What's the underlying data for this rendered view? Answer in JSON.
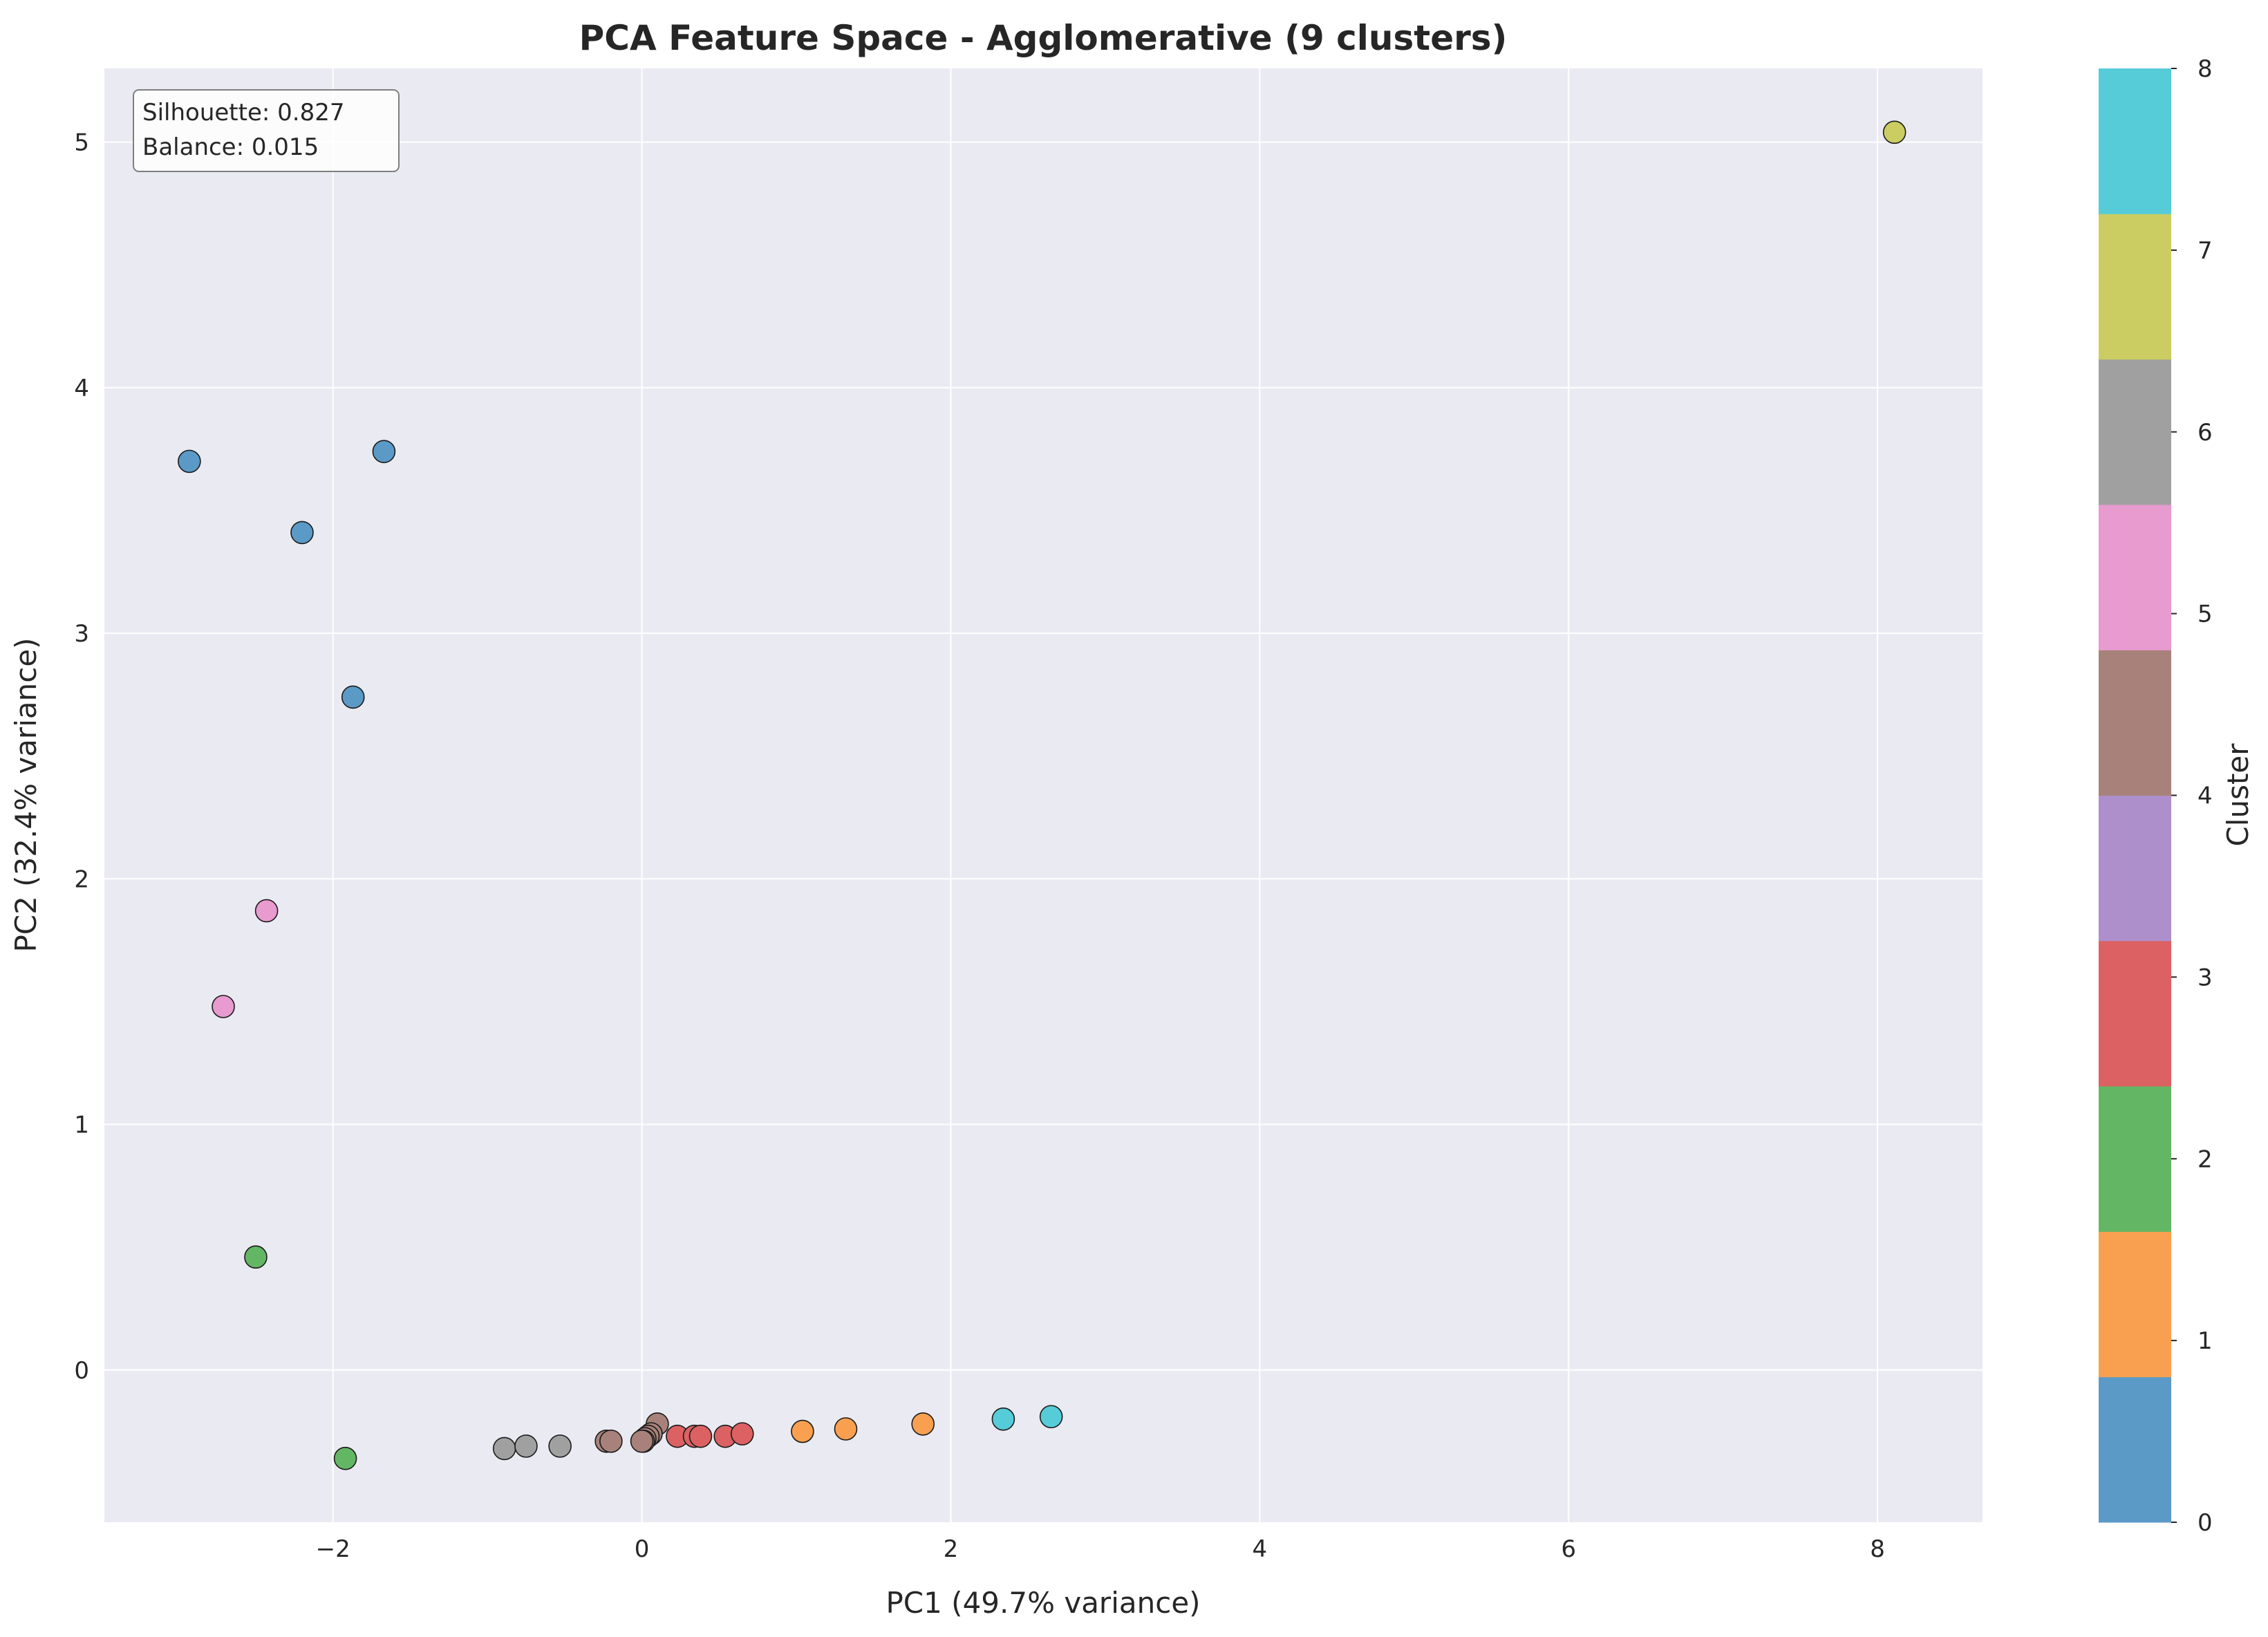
{
  "chart_data": {
    "type": "scatter",
    "title": "PCA Feature Space - Agglomerative (9 clusters)",
    "xlabel": "PC1 (49.7% variance)",
    "ylabel": "PC2 (32.4% variance)",
    "xlim": [
      -3.48,
      8.68
    ],
    "ylim": [
      -0.62,
      5.3
    ],
    "x_ticks": [
      -2,
      0,
      2,
      4,
      6,
      8
    ],
    "y_ticks": [
      0,
      1,
      2,
      3,
      4,
      5
    ],
    "x_tick_labels": [
      "−2",
      "0",
      "2",
      "4",
      "6",
      "8"
    ],
    "y_tick_labels": [
      "0",
      "1",
      "2",
      "3",
      "4",
      "5"
    ],
    "grid": true,
    "metrics": {
      "silhouette": "Silhouette: 0.827",
      "balance": "Balance: 0.015"
    },
    "colorbar": {
      "label": "Cluster",
      "ticks": [
        0,
        1,
        2,
        3,
        4,
        5,
        6,
        7,
        8
      ],
      "tick_labels": [
        "0",
        "1",
        "2",
        "3",
        "4",
        "5",
        "6",
        "7",
        "8"
      ],
      "colors": [
        "#5b9ac7",
        "#f9a050",
        "#63b764",
        "#dc6163",
        "#ad8fcb",
        "#a8827a",
        "#e89bcf",
        "#a0a0a0",
        "#cbcd62",
        "#56ccd9"
      ]
    },
    "cluster_colors": [
      "#5b9ac7",
      "#f9a050",
      "#63b764",
      "#dc6163",
      "#ad8fcb",
      "#a8827a",
      "#e89bcf",
      "#a0a0a0",
      "#cbcd62",
      "#56ccd9"
    ],
    "points": [
      {
        "x": -2.93,
        "y": 3.7,
        "cluster": 0
      },
      {
        "x": -1.67,
        "y": 3.74,
        "cluster": 0
      },
      {
        "x": -2.2,
        "y": 3.41,
        "cluster": 0
      },
      {
        "x": -1.87,
        "y": 2.74,
        "cluster": 0
      },
      {
        "x": 1.04,
        "y": -0.25,
        "cluster": 1
      },
      {
        "x": 1.32,
        "y": -0.24,
        "cluster": 1
      },
      {
        "x": 1.82,
        "y": -0.22,
        "cluster": 1
      },
      {
        "x": -2.5,
        "y": 0.46,
        "cluster": 2
      },
      {
        "x": -1.92,
        "y": -0.36,
        "cluster": 2
      },
      {
        "x": 0.23,
        "y": -0.27,
        "cluster": 3
      },
      {
        "x": 0.34,
        "y": -0.27,
        "cluster": 3
      },
      {
        "x": 0.38,
        "y": -0.27,
        "cluster": 3
      },
      {
        "x": 0.54,
        "y": -0.27,
        "cluster": 3
      },
      {
        "x": 0.65,
        "y": -0.26,
        "cluster": 3
      },
      {
        "x": -0.23,
        "y": -0.29,
        "cluster": 5
      },
      {
        "x": -0.2,
        "y": -0.29,
        "cluster": 5
      },
      {
        "x": 0.1,
        "y": -0.22,
        "cluster": 5
      },
      {
        "x": 0.06,
        "y": -0.26,
        "cluster": 5
      },
      {
        "x": 0.04,
        "y": -0.27,
        "cluster": 5
      },
      {
        "x": 0.02,
        "y": -0.28,
        "cluster": 5
      },
      {
        "x": 0.01,
        "y": -0.29,
        "cluster": 5
      },
      {
        "x": 0.0,
        "y": -0.29,
        "cluster": 5
      },
      {
        "x": -2.43,
        "y": 1.87,
        "cluster": 6
      },
      {
        "x": -2.71,
        "y": 1.48,
        "cluster": 6
      },
      {
        "x": -0.89,
        "y": -0.32,
        "cluster": 7
      },
      {
        "x": -0.75,
        "y": -0.31,
        "cluster": 7
      },
      {
        "x": -0.53,
        "y": -0.31,
        "cluster": 7
      },
      {
        "x": 8.11,
        "y": 5.04,
        "cluster": 8
      },
      {
        "x": 2.34,
        "y": -0.2,
        "cluster": 9
      },
      {
        "x": 2.65,
        "y": -0.19,
        "cluster": 9
      }
    ]
  }
}
